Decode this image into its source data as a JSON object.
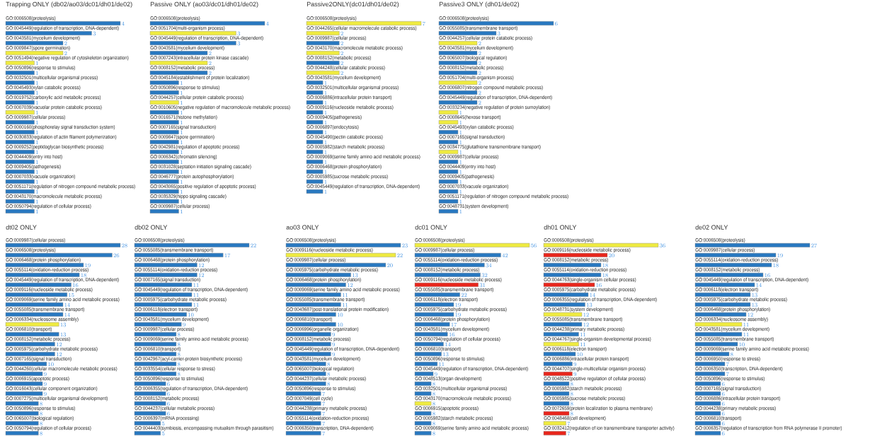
{
  "chart_data": [
    {
      "type": "bar",
      "orientation": "horizontal",
      "data_labels": true,
      "tick_labels": "y",
      "title": "Trapping ONLY (db02/ao03/dc01/dh01/de02)",
      "categories": [
        "GO:0006508(proteolysis)",
        "GO:0045449(regulation of transcription, DNA-dependent)",
        "GO:0043581(mycelium development)",
        "GO:0009847(spore germination)",
        "GO:0051494(negative regulation of cytoskeleton organization)",
        "GO:0050896(response to stimulus)",
        "GO:0032501(multicellular organismal process)",
        "GO:0045493(xylan catabolic process)",
        "GO:0019752(carboxylic acid metabolic process)",
        "GO:0007039(vacuolar protein catabolic process)",
        "GO:0009987(cellular process)",
        "GO:0000160(phosphorelay signal transduction system)",
        "GO:0030833(regulation of actin filament polymerization)",
        "GO:0009252(peptidoglycan biosynthetic process)",
        "GO:0044409(entry into host)",
        "GO:0009405(pathogenesis)",
        "GO:0007033(vacuole organization)",
        "GO:0051171(regulation of nitrogen compound metabolic process)",
        "GO:0043170(macromolecule metabolic process)",
        "GO:0050794(regulation of cellular process)"
      ],
      "values": [
        4,
        3,
        2,
        2,
        1,
        1,
        1,
        1,
        1,
        1,
        1,
        1,
        1,
        1,
        1,
        1,
        1,
        1,
        1,
        1
      ],
      "colors": [
        "#2878c0",
        "#2878c0",
        "#2878c0",
        "#eeea40",
        "#eeea40",
        "#2878c0",
        "#2878c0",
        "#2878c0",
        "#2878c0",
        "#eeea40",
        "#2878c0",
        "#2878c0",
        "#2878c0",
        "#2878c0",
        "#2878c0",
        "#2878c0",
        "#2878c0",
        "#2878c0",
        "#2878c0",
        "#2878c0"
      ]
    },
    {
      "type": "bar",
      "orientation": "horizontal",
      "data_labels": true,
      "tick_labels": "y",
      "title": "Passive ONLY (ao03/dc01/dh01/de02)",
      "categories": [
        "GO:0006508(proteolysis)",
        "GO:0051704(multi-organism process)",
        "GO:0045449(regulation of transcription, DNA-dependent)",
        "GO:0043581(mycelium development)",
        "GO:0007243(intracellular protein kinase cascade)",
        "GO:0008152(metabolic process)",
        "GO:0045184(establishment of protein localization)",
        "GO:0050896(response to stimulus)",
        "GO:0044257(cellular protein catabolic process)",
        "GO:0010605(negative regulation of macromolecule metabolic process)",
        "GO:0016571(histone methylation)",
        "GO:0007165(signal transduction)",
        "GO:0009847(spore germination)",
        "GO:0042981(regulation of apoptotic process)",
        "GO:0006342(chromatin silencing)",
        "GO:0031028(septation initiation signaling cascade)",
        "GO:0046777(protein autophosphorylation)",
        "GO:0043065(positive regulation of apoptotic process)",
        "GO:0035329(hippo signaling cascade)",
        "GO:0009987(cellular process)"
      ],
      "values": [
        4,
        3,
        3,
        2,
        2,
        2,
        1,
        1,
        1,
        1,
        1,
        1,
        1,
        1,
        1,
        1,
        1,
        1,
        1,
        1
      ],
      "colors": [
        "#2878c0",
        "#eeea40",
        "#2878c0",
        "#2878c0",
        "#eeea40",
        "#2878c0",
        "#2878c0",
        "#2878c0",
        "#eeea40",
        "#2878c0",
        "#2878c0",
        "#2878c0",
        "#2878c0",
        "#2878c0",
        "#2878c0",
        "#2878c0",
        "#2878c0",
        "#2878c0",
        "#2878c0",
        "#2878c0"
      ]
    },
    {
      "type": "bar",
      "orientation": "horizontal",
      "data_labels": true,
      "tick_labels": "y",
      "title": "Passive2ONLY(dc01/dh01/de02)",
      "categories": [
        "GO:0006508(proteolysis)",
        "GO:0044265(cellular macromolecule catabolic process)",
        "GO:0009987(cellular process)",
        "GO:0043170(macromolecule metabolic process)",
        "GO:0008152(metabolic process)",
        "GO:0044248(cellular catabolic process)",
        "GO:0043581(mycelium development)",
        "GO:0032501(multicellular organismal process)",
        "GO:0006886(intracellular protein transport)",
        "GO:0009116(nucleoside metabolic process)",
        "GO:0009405(pathogenesis)",
        "GO:0006897(endocytosis)",
        "GO:0045490(pectin catabolic process)",
        "GO:0005982(starch metabolic process)",
        "GO:0009069(serine family amino acid metabolic process)",
        "GO:0006468(protein phosphorylation)",
        "GO:0005985(sucrose metabolic process)",
        "GO:0045449(regulation of transcription, DNA-dependent)"
      ],
      "values": [
        7,
        2,
        2,
        2,
        2,
        2,
        1,
        1,
        1,
        1,
        1,
        1,
        1,
        1,
        1,
        1,
        1,
        1
      ],
      "colors": [
        "#eeea40",
        "#eeea40",
        "#2878c0",
        "#eeea40",
        "#2878c0",
        "#eeea40",
        "#2878c0",
        "#2878c0",
        "#2878c0",
        "#2878c0",
        "#2878c0",
        "#2878c0",
        "#2878c0",
        "#2878c0",
        "#2878c0",
        "#2878c0",
        "#2878c0",
        "#2878c0"
      ]
    },
    {
      "type": "bar",
      "orientation": "horizontal",
      "data_labels": true,
      "tick_labels": "y",
      "title": "Passive3 ONLY (dh01/de02)",
      "categories": [
        "GO:0006508(proteolysis)",
        "GO:0055085(transmembrane transport)",
        "GO:0044257(cellular protein catabolic process)",
        "GO:0043581(mycelium development)",
        "GO:0065007(biological regulation)",
        "GO:0008152(metabolic process)",
        "GO:0051704(multi-organism process)",
        "GO:0006807(nitrogen compound metabolic process)",
        "GO:0045449(regulation of transcription, DNA-dependent)",
        "GO:0033234(negative regulation of protein sumoylation)",
        "GO:0008645(hexose transport)",
        "GO:0045493(xylan catabolic process)",
        "GO:0007165(signal transduction)",
        "GO:0034775(glutathione transmembrane transport)",
        "GO:0009987(cellular process)",
        "GO:0044409(entry into host)",
        "GO:0009405(pathogenesis)",
        "GO:0007033(vacuole organization)",
        "GO:0051171(regulation of nitrogen compound metabolic process)",
        "GO:0048731(system development)"
      ],
      "values": [
        6,
        3,
        2,
        2,
        2,
        2,
        2,
        2,
        2,
        1,
        1,
        1,
        1,
        1,
        1,
        1,
        1,
        1,
        1,
        1
      ],
      "colors": [
        "#2878c0",
        "#2878c0",
        "#eeea40",
        "#2878c0",
        "#2878c0",
        "#2878c0",
        "#eeea40",
        "#2878c0",
        "#2878c0",
        "#eeea40",
        "#eeea40",
        "#2878c0",
        "#2878c0",
        "#eeea40",
        "#2878c0",
        "#2878c0",
        "#2878c0",
        "#2878c0",
        "#2878c0",
        "#2878c0"
      ]
    },
    {
      "type": "bar",
      "orientation": "horizontal",
      "data_labels": true,
      "tick_labels": "y",
      "title": "dt02 ONLY",
      "categories": [
        "GO:0009987(cellular process)",
        "GO:0006508(proteolysis)",
        "GO:0006468(protein phosphorylation)",
        "GO:0055114(oxidation-reduction process)",
        "GO:0045449(regulation of transcription, DNA-dependent)",
        "GO:0009116(nucleoside metabolic process)",
        "GO:0009069(serine family amino acid metabolic process)",
        "GO:0055085(transmembrane transport)",
        "GO:0006334(nucleosome assembly)",
        "GO:0006810(transport)",
        "GO:0008152(metabolic process)",
        "GO:0005975(carbohydrate metabolic process)",
        "GO:0007165(signal transduction)",
        "GO:0044260(cellular macromolecule metabolic process)",
        "GO:0006915(apoptotic process)",
        "GO:0016043(cellular component organization)",
        "GO:0007275(multicellular organismal development)",
        "GO:0050896(response to stimulus)",
        "GO:0065007(biological regulation)",
        "GO:0050794(regulation of cellular process)"
      ],
      "values": [
        28,
        26,
        19,
        18,
        16,
        15,
        14,
        14,
        13,
        13,
        12,
        12,
        10,
        9,
        9,
        9,
        8,
        8,
        8,
        8
      ],
      "colors": [
        "#2878c0",
        "#2878c0",
        "#2878c0",
        "#2878c0",
        "#2878c0",
        "#2878c0",
        "#2878c0",
        "#2878c0",
        "#eeea40",
        "#2878c0",
        "#2878c0",
        "#2878c0",
        "#2878c0",
        "#2878c0",
        "#2878c0",
        "#2878c0",
        "#2878c0",
        "#2878c0",
        "#2878c0",
        "#2878c0"
      ]
    },
    {
      "type": "bar",
      "orientation": "horizontal",
      "data_labels": true,
      "tick_labels": "y",
      "title": "db02 ONLY",
      "categories": [
        "GO:0006508(proteolysis)",
        "GO:0055085(transmembrane transport)",
        "GO:0006468(protein phosphorylation)",
        "GO:0055114(oxidation-reduction process)",
        "GO:0007165(signal transduction)",
        "GO:0045449(regulation of transcription, DNA-dependent)",
        "GO:0005975(carbohydrate metabolic process)",
        "GO:0006118(electron transport)",
        "GO:0043581(mycelium development)",
        "GO:0009987(cellular process)",
        "GO:0009069(serine family amino acid metabolic process)",
        "GO:0006810(transport)",
        "GO:0042967(acyl-carrier-protein biosynthetic process)",
        "GO:0033554(cellular response to stress)",
        "GO:0050896(response to stimulus)",
        "GO:0006355(regulation of transcription, DNA-dependent)",
        "GO:0008152(metabolic process)",
        "GO:0044237(cellular metabolic process)",
        "GO:0006397(mRNA processing)",
        "GO:0044403(symbiosis, encompassing mutualism through parasitism)"
      ],
      "values": [
        22,
        17,
        12,
        12,
        11,
        11,
        11,
        10,
        9,
        8,
        8,
        8,
        8,
        8,
        6,
        6,
        6,
        6,
        5,
        5
      ],
      "colors": [
        "#2878c0",
        "#2878c0",
        "#2878c0",
        "#2878c0",
        "#2878c0",
        "#2878c0",
        "#2878c0",
        "#2878c0",
        "#2878c0",
        "#2878c0",
        "#2878c0",
        "#2878c0",
        "#2878c0",
        "#2878c0",
        "#2878c0",
        "#2878c0",
        "#2878c0",
        "#2878c0",
        "#2878c0",
        "#2878c0"
      ]
    },
    {
      "type": "bar",
      "orientation": "horizontal",
      "data_labels": true,
      "tick_labels": "y",
      "title": "ao03 ONLY",
      "categories": [
        "GO:0006508(proteolysis)",
        "GO:0009116(nucleoside metabolic process)",
        "GO:0009987(cellular process)",
        "GO:0005975(carbohydrate metabolic process)",
        "GO:0006468(protein phosphorylation)",
        "GO:0009069(serine family amino acid metabolic process)",
        "GO:0055085(transmembrane transport)",
        "GO:0043687(post-translational protein modification)",
        "GO:0006810(transport)",
        "GO:0006996(organelle organization)",
        "GO:0008152(metabolic process)",
        "GO:0045449(regulation of transcription, DNA-dependent)",
        "GO:0043581(mycelium development)",
        "GO:0065007(biological regulation)",
        "GO:0044237(cellular metabolic process)",
        "GO:0050896(response to stimulus)",
        "GO:0007049(cell cycle)",
        "GO:0044238(primary metabolic process)",
        "GO:0055114(oxidation-reduction process)",
        "GO:0006350(transcription, DNA-dependent)"
      ],
      "values": [
        23,
        22,
        20,
        13,
        12,
        11,
        11,
        10,
        10,
        9,
        9,
        9,
        8,
        8,
        8,
        7,
        7,
        7,
        7,
        7
      ],
      "colors": [
        "#2878c0",
        "#eeea40",
        "#2878c0",
        "#2878c0",
        "#2878c0",
        "#2878c0",
        "#2878c0",
        "#2878c0",
        "#2878c0",
        "#2878c0",
        "#2878c0",
        "#2878c0",
        "#2878c0",
        "#2878c0",
        "#2878c0",
        "#2878c0",
        "#2878c0",
        "#2878c0",
        "#2878c0",
        "#2878c0"
      ]
    },
    {
      "type": "bar",
      "orientation": "horizontal",
      "data_labels": true,
      "tick_labels": "y",
      "title": "dc01 ONLY",
      "categories": [
        "GO:0006508(proteolysis)",
        "GO:0009987(cellular process)",
        "GO:0055114(oxidation-reduction process)",
        "GO:0008152(metabolic process)",
        "GO:0009116(nucleoside metabolic process)",
        "GO:0055085(transmembrane transport)",
        "GO:0006118(electron transport)",
        "GO:0005975(carbohydrate metabolic process)",
        "GO:0006468(protein phosphorylation)",
        "GO:0043581(mycelium development)",
        "GO:0050794(regulation of cellular process)",
        "GO:0006810(transport)",
        "GO:0050896(response to stimulus)",
        "GO:0045449(regulation of transcription, DNA-dependent)",
        "GO:0048513(organ development)",
        "GO:0032501(multicellular organismal process)",
        "GO:0043170(macromolecule metabolic process)",
        "GO:0006915(apoptotic process)",
        "GO:0005982(starch metabolic process)",
        "GO:0009069(serine family amino acid metabolic process)"
      ],
      "values": [
        56,
        42,
        34,
        32,
        31,
        22,
        19,
        19,
        17,
        16,
        14,
        13,
        11,
        9,
        8,
        8,
        8,
        8,
        8,
        8
      ],
      "colors": [
        "#eeea40",
        "#2878c0",
        "#2878c0",
        "#2878c0",
        "#e8261c",
        "#2878c0",
        "#2878c0",
        "#2878c0",
        "#2878c0",
        "#2878c0",
        "#2878c0",
        "#2878c0",
        "#2878c0",
        "#2878c0",
        "#2878c0",
        "#2878c0",
        "#eeea40",
        "#2878c0",
        "#2878c0",
        "#2878c0"
      ]
    },
    {
      "type": "bar",
      "orientation": "horizontal",
      "data_labels": true,
      "tick_labels": "y",
      "title": "dh01 ONLY",
      "categories": [
        "GO:0006508(proteolysis)",
        "GO:0009116(nucleoside metabolic process)",
        "GO:0008152(metabolic process)",
        "GO:0055114(oxidation-reduction process)",
        "GO:0044763(single-organism cellular process)",
        "GO:0005975(carbohydrate metabolic process)",
        "GO:0006355(regulation of transcription, DNA-dependent)",
        "GO:0048731(system development)",
        "GO:0055085(transmembrane transport)",
        "GO:0044238(primary metabolic process)",
        "GO:0044767(single-organism developmental process)",
        "GO:0006118(electron transport)",
        "GO:0006886(intracellular protein transport)",
        "GO:0044707(single-multicellular organism process)",
        "GO:0048522(positive regulation of cellular process)",
        "GO:0005982(starch metabolic process)",
        "GO:0005985(sucrose metabolic process)",
        "GO:0072659(protein localization to plasma membrane)",
        "GO:0048468(cell development)",
        "GO:0032412(regulation of ion transmembrane transporter activity)"
      ],
      "values": [
        36,
        20,
        18,
        18,
        16,
        14,
        13,
        12,
        12,
        11,
        11,
        10,
        9,
        9,
        8,
        8,
        8,
        8,
        7,
        7
      ],
      "colors": [
        "#eeea40",
        "#e8261c",
        "#2878c0",
        "#2878c0",
        "#e8261c",
        "#2878c0",
        "#2878c0",
        "#eeea40",
        "#2878c0",
        "#2878c0",
        "#eeea40",
        "#2878c0",
        "#2878c0",
        "#e8261c",
        "#2878c0",
        "#2878c0",
        "#2878c0",
        "#e8261c",
        "#eeea40",
        "#e8261c"
      ]
    },
    {
      "type": "bar",
      "orientation": "horizontal",
      "data_labels": true,
      "tick_labels": "y",
      "title": "de02 ONLY",
      "categories": [
        "GO:0006508(proteolysis)",
        "GO:0009987(cellular process)",
        "GO:0055114(oxidation-reduction process)",
        "GO:0008152(metabolic process)",
        "GO:0045449(regulation of transcription, DNA-dependent)",
        "GO:0006118(electron transport)",
        "GO:0005975(carbohydrate metabolic process)",
        "GO:0006468(protein phosphorylation)",
        "GO:0006334(nucleosome assembly)",
        "GO:0043581(mycelium development)",
        "GO:0055085(transmembrane transport)",
        "GO:0009069(serine family amino acid metabolic process)",
        "GO:0006950(response to stress)",
        "GO:0006350(transcription, DNA-dependent)",
        "GO:0050896(response to stimulus)",
        "GO:0007165(signal transduction)",
        "GO:0006886(intracellular protein transport)",
        "GO:0044238(primary metabolic process)",
        "GO:0006810(transport)",
        "GO:0006357(regulation of transcription from RNA polymerase II promoter)"
      ],
      "values": [
        27,
        19,
        18,
        16,
        14,
        13,
        13,
        12,
        11,
        11,
        10,
        8,
        7,
        7,
        6,
        6,
        6,
        6,
        6,
        6
      ],
      "colors": [
        "#2878c0",
        "#2878c0",
        "#2878c0",
        "#2878c0",
        "#2878c0",
        "#2878c0",
        "#2878c0",
        "#2878c0",
        "#eeea40",
        "#2878c0",
        "#2878c0",
        "#2878c0",
        "#2878c0",
        "#2878c0",
        "#2878c0",
        "#2878c0",
        "#2878c0",
        "#2878c0",
        "#2878c0",
        "#2878c0"
      ]
    }
  ]
}
